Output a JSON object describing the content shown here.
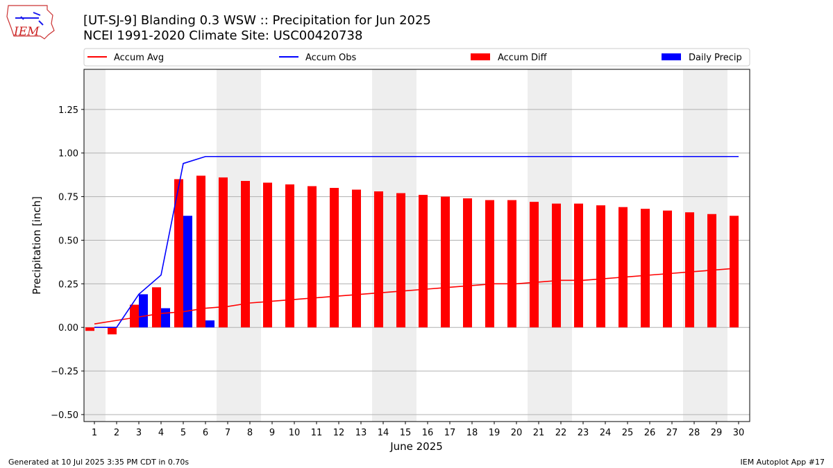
{
  "header": {
    "title_line1": "[UT-SJ-9] Blanding 0.3 WSW :: Precipitation for Jun 2025",
    "title_line2": "NCEI 1991-2020 Climate Site: USC00420738",
    "logo_text": "IEM"
  },
  "footer": {
    "left": "Generated at 10 Jul 2025 3:35 PM CDT in 0.70s",
    "right": "IEM Autoplot App #17"
  },
  "colors": {
    "avg": "#ff0000",
    "obs": "#0000ff",
    "diff": "#ff0000",
    "daily": "#0000ff",
    "weekend_band": "#eeeeee",
    "grid": "#b0b0b0"
  },
  "chart_data": {
    "type": "bar",
    "title": "[UT-SJ-9] Blanding 0.3 WSW :: Precipitation for Jun 2025",
    "subtitle": "NCEI 1991-2020 Climate Site: USC00420738",
    "xlabel": "June 2025",
    "ylabel": "Precipitation [inch]",
    "ylim": [
      -0.54,
      1.48
    ],
    "yticks": [
      -0.5,
      -0.25,
      0.0,
      0.25,
      0.5,
      0.75,
      1.0,
      1.25
    ],
    "ytick_labels": [
      "−0.50",
      "−0.25",
      "0.00",
      "0.25",
      "0.50",
      "0.75",
      "1.00",
      "1.25"
    ],
    "grid": "horizontal",
    "legend_placement": "top",
    "categories": [
      "1",
      "2",
      "3",
      "4",
      "5",
      "6",
      "7",
      "8",
      "9",
      "10",
      "11",
      "12",
      "13",
      "14",
      "15",
      "16",
      "17",
      "18",
      "19",
      "20",
      "21",
      "22",
      "23",
      "24",
      "25",
      "26",
      "27",
      "28",
      "29",
      "30"
    ],
    "shaded_days": [
      1,
      7,
      8,
      14,
      15,
      21,
      22,
      28,
      29
    ],
    "series": [
      {
        "name": "Accum Avg",
        "kind": "line",
        "values": [
          0.02,
          0.04,
          0.06,
          0.08,
          0.09,
          0.11,
          0.12,
          0.14,
          0.15,
          0.16,
          0.17,
          0.18,
          0.19,
          0.2,
          0.21,
          0.22,
          0.23,
          0.24,
          0.25,
          0.25,
          0.26,
          0.27,
          0.27,
          0.28,
          0.29,
          0.3,
          0.31,
          0.32,
          0.33,
          0.34
        ]
      },
      {
        "name": "Accum Obs",
        "kind": "line",
        "values": [
          0.0,
          0.0,
          0.19,
          0.3,
          0.94,
          0.98,
          0.98,
          0.98,
          0.98,
          0.98,
          0.98,
          0.98,
          0.98,
          0.98,
          0.98,
          0.98,
          0.98,
          0.98,
          0.98,
          0.98,
          0.98,
          0.98,
          0.98,
          0.98,
          0.98,
          0.98,
          0.98,
          0.98,
          0.98,
          0.98
        ]
      },
      {
        "name": "Accum Diff",
        "kind": "bar",
        "values": [
          -0.02,
          -0.04,
          0.13,
          0.23,
          0.85,
          0.87,
          0.86,
          0.84,
          0.83,
          0.82,
          0.81,
          0.8,
          0.79,
          0.78,
          0.77,
          0.76,
          0.75,
          0.74,
          0.73,
          0.73,
          0.72,
          0.71,
          0.71,
          0.7,
          0.69,
          0.68,
          0.67,
          0.66,
          0.65,
          0.64
        ]
      },
      {
        "name": "Daily Precip",
        "kind": "bar",
        "values": [
          0,
          0,
          0.19,
          0.11,
          0.64,
          0.04,
          0,
          0,
          0,
          0,
          0,
          0,
          0,
          0,
          0,
          0,
          0,
          0,
          0,
          0,
          0,
          0,
          0,
          0,
          0,
          0,
          0,
          0,
          0,
          0
        ]
      }
    ]
  }
}
